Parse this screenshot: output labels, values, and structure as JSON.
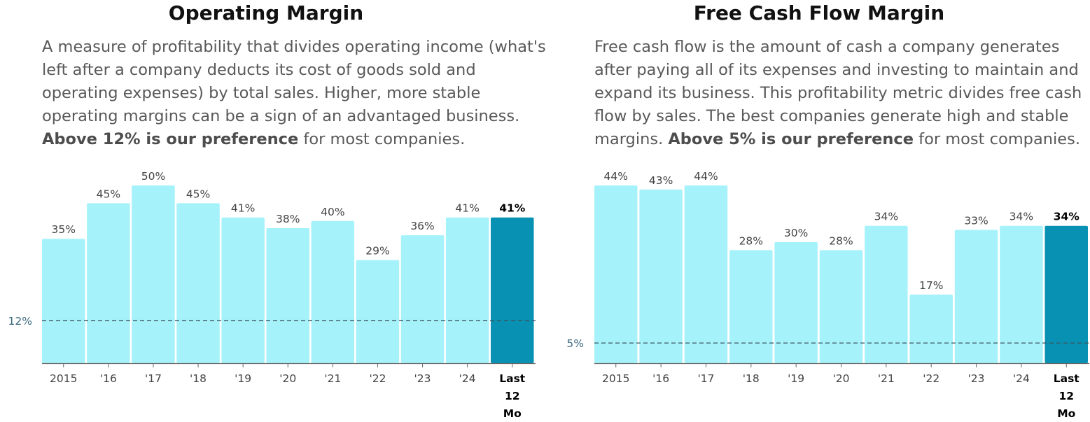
{
  "colors": {
    "bar": "#a6f2fb",
    "highlight": "#0891b2",
    "refline": "#3a5560",
    "axis": "#666666"
  },
  "panels": [
    {
      "title": "Operating Margin",
      "desc_lead": "A measure of profitability that divides operating income (what's left after a company deducts its cost of goods sold and operating expenses) by total sales. Higher, more stable operating margins can be a sign of an advantaged business.",
      "desc_bold": "Above 12% is our preference",
      "desc_tail": "for most companies."
    },
    {
      "title": "Free Cash Flow Margin",
      "desc_lead": "Free cash flow is the amount of cash a company generates after paying all of its expenses and investing to maintain and expand its business. This profitability metric divides free cash flow by sales. The best companies generate high and stable margins.",
      "desc_bold": "Above 5% is our preference",
      "desc_tail": "for most companies."
    }
  ],
  "chart_data": [
    {
      "type": "bar",
      "categories": [
        "2015",
        "'16",
        "'17",
        "'18",
        "'19",
        "'20",
        "'21",
        "'22",
        "'23",
        "'24",
        "Last 12 Mo"
      ],
      "values": [
        35,
        45,
        50,
        45,
        41,
        38,
        40,
        29,
        36,
        41,
        41
      ],
      "labels": [
        "35%",
        "45%",
        "50%",
        "45%",
        "41%",
        "38%",
        "40%",
        "29%",
        "36%",
        "41%",
        "41%"
      ],
      "highlight_index": 10,
      "reference": {
        "value": 12,
        "label": "12%"
      },
      "ylim": [
        0,
        50
      ],
      "grid": false
    },
    {
      "type": "bar",
      "categories": [
        "2015",
        "'16",
        "'17",
        "'18",
        "'19",
        "'20",
        "'21",
        "'22",
        "'23",
        "'24",
        "Last 12 Mo"
      ],
      "values": [
        44,
        43,
        44,
        28,
        30,
        28,
        34,
        17,
        33,
        34,
        34
      ],
      "labels": [
        "44%",
        "43%",
        "44%",
        "28%",
        "30%",
        "28%",
        "34%",
        "17%",
        "33%",
        "34%",
        "34%"
      ],
      "highlight_index": 10,
      "reference": {
        "value": 5,
        "label": "5%"
      },
      "ylim": [
        0,
        44
      ],
      "grid": false
    }
  ]
}
